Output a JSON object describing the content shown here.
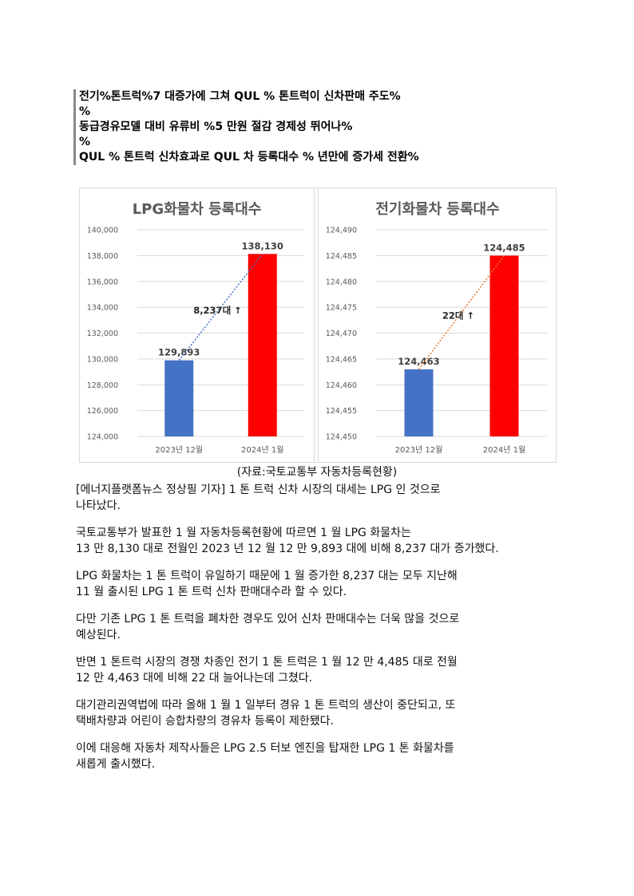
{
  "heading": {
    "line1": "전기%톤트럭%7 대증가에 그쳐 QUL % 톤트럭이 신차판매 주도%",
    "line2": "%",
    "line3": "동급경유모델 대비 유류비 %5 만원 절감 경제성 뛰어나%",
    "line4": "%",
    "line5": "QUL % 톤트럭 신차효과로 QUL 차 등록대수 % 년만에 증가세 전환%"
  },
  "charts": {
    "lpg": {
      "title": "LPG화물차 등록대수",
      "annotation": "8,237대 ↑",
      "line_color": "#4472c4"
    },
    "electric": {
      "title": "전기화물차 등록대수",
      "annotation": "22대 ↑",
      "line_color": "#ed7d31"
    }
  },
  "chart_data": [
    {
      "type": "bar",
      "title": "LPG화물차 등록대수",
      "categories": [
        "2023년 12월",
        "2024년 1월"
      ],
      "values": [
        129893,
        138130
      ],
      "value_labels": [
        "129,893",
        "138,130"
      ],
      "colors": [
        "#4472c4",
        "#ff0000"
      ],
      "ylim": [
        124000,
        140000
      ],
      "yticks": [
        124000,
        126000,
        128000,
        130000,
        132000,
        134000,
        136000,
        138000,
        140000
      ],
      "ytick_labels": [
        "124,000",
        "126,000",
        "128,000",
        "130,000",
        "132,000",
        "134,000",
        "136,000",
        "138,000",
        "140,000"
      ],
      "grid": true
    },
    {
      "type": "bar",
      "title": "전기화물차 등록대수",
      "categories": [
        "2023년 12월",
        "2024년 1월"
      ],
      "values": [
        124463,
        124485
      ],
      "value_labels": [
        "124,463",
        "124,485"
      ],
      "colors": [
        "#4472c4",
        "#ff0000"
      ],
      "ylim": [
        124450,
        124490
      ],
      "yticks": [
        124450,
        124455,
        124460,
        124465,
        124470,
        124475,
        124480,
        124485,
        124490
      ],
      "ytick_labels": [
        "124,450",
        "124,455",
        "124,460",
        "124,465",
        "124,470",
        "124,475",
        "124,480",
        "124,485",
        "124,490"
      ],
      "grid": true
    }
  ],
  "caption": "(자료:국토교통부 자동차등록현황)",
  "article": {
    "p1": [
      "[에너지플랫폼뉴스 정상필 기자] 1 톤 트럭 신차 시장의 대세는 LPG 인 것으로",
      "나타났다."
    ],
    "p2": [
      "국토교통부가 발표한 1 월 자동차등록현황에 따르면 1 월 LPG 화물차는",
      "13 만 8,130 대로 전월인 2023 년 12 월 12 만 9,893 대에 비해 8,237 대가 증가했다."
    ],
    "p3": [
      "LPG 화물차는 1 톤 트럭이 유일하기 때문에 1 월 증가한 8,237 대는 모두 지난해",
      "11 월 출시된 LPG 1 톤 트럭 신차 판매대수라 할 수 있다."
    ],
    "p4": [
      "다만 기존 LPG 1 톤 트럭을 폐차한 경우도 있어 신차 판매대수는 더욱 많을 것으로",
      "예상된다."
    ],
    "p5": [
      "반면 1 톤트럭 시장의 경쟁 차종인 전기 1 톤 트럭은  1 월 12 만 4,485 대로 전월",
      "12 만 4,463 대에 비해 22 대 늘어나는데 그쳤다."
    ],
    "p6": [
      "대기관리권역법에 따라 올해 1 월 1 일부터 경유 1 톤 트럭의 생산이 중단되고, 또",
      "택배차량과 어린이 승합차량의 경유차 등록이 제한됐다."
    ],
    "p7": [
      "이에 대응해 자동차 제작사들은 LPG 2.5 터보 엔진을 탑재한 LPG 1 톤 화물차를",
      "새롭게 출시했다."
    ]
  }
}
